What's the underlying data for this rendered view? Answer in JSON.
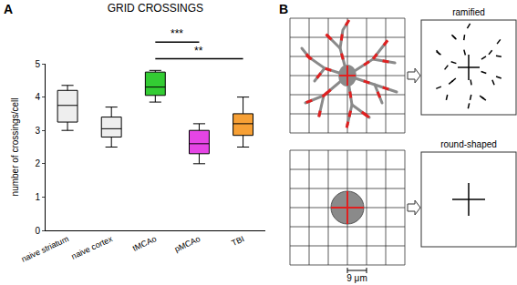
{
  "chart_data": {
    "type": "box",
    "panel_label": "A",
    "title": "GRID CROSSINGS",
    "y_label": "number of crossings/cell",
    "categories": [
      "naive striatum",
      "naive cortex",
      "tMCAo",
      "pMCAo",
      "TBI"
    ],
    "boxes": [
      {
        "min": 3.0,
        "q1": 3.25,
        "median": 3.75,
        "q3": 4.2,
        "max": 4.35
      },
      {
        "min": 2.5,
        "q1": 2.8,
        "median": 3.05,
        "q3": 3.4,
        "max": 3.7
      },
      {
        "min": 3.85,
        "q1": 4.05,
        "median": 4.3,
        "q3": 4.75,
        "max": 4.8
      },
      {
        "min": 2.0,
        "q1": 2.3,
        "median": 2.6,
        "q3": 3.0,
        "max": 3.2
      },
      {
        "min": 2.5,
        "q1": 2.85,
        "median": 3.2,
        "q3": 3.5,
        "max": 4.0
      }
    ],
    "colors": [
      "#eeeeee",
      "#eeeeee",
      "#33cc33",
      "#e545e5",
      "#f7a035"
    ],
    "ylim": [
      0,
      5
    ],
    "yticks": [
      0,
      1,
      2,
      3,
      4,
      5
    ],
    "grid": false,
    "significance": [
      {
        "from": "tMCAo",
        "to": "pMCAo",
        "text": "***"
      },
      {
        "from": "tMCAo",
        "to": "TBI",
        "text": "**"
      }
    ]
  },
  "diagram": {
    "panel_label": "B",
    "panels": [
      {
        "label": "ramified",
        "shape": "ramified"
      },
      {
        "label": "round-shaped",
        "shape": "round"
      }
    ],
    "scale_bar": "9 μm"
  }
}
